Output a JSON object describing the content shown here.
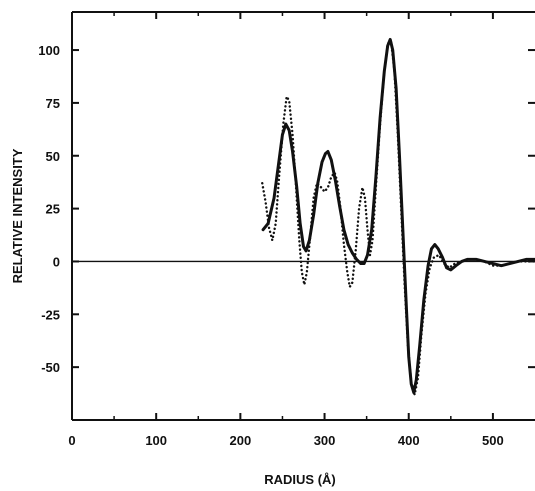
{
  "chart_data": {
    "type": "line",
    "title": "",
    "xlabel": "RADIUS (Å)",
    "ylabel": "RELATIVE INTENSITY",
    "xlim": [
      0,
      550
    ],
    "ylim": [
      -75,
      118
    ],
    "xticks": [
      0,
      100,
      200,
      300,
      400,
      500
    ],
    "yticks": [
      -50,
      -25,
      0,
      25,
      50,
      75,
      100
    ],
    "zero_line": true,
    "grid": false,
    "legend": "none",
    "series": [
      {
        "style": "solid",
        "color": "#111111",
        "points": [
          [
            227,
            15
          ],
          [
            233,
            18
          ],
          [
            240,
            30
          ],
          [
            245,
            45
          ],
          [
            250,
            60
          ],
          [
            254,
            65
          ],
          [
            258,
            62
          ],
          [
            262,
            52
          ],
          [
            267,
            35
          ],
          [
            271,
            18
          ],
          [
            275,
            7
          ],
          [
            278,
            5
          ],
          [
            282,
            10
          ],
          [
            287,
            22
          ],
          [
            292,
            37
          ],
          [
            297,
            47
          ],
          [
            301,
            51
          ],
          [
            304,
            52
          ],
          [
            308,
            48
          ],
          [
            313,
            38
          ],
          [
            318,
            26
          ],
          [
            323,
            15
          ],
          [
            328,
            8
          ],
          [
            333,
            4
          ],
          [
            338,
            1
          ],
          [
            343,
            -1
          ],
          [
            347,
            -1
          ],
          [
            351,
            3
          ],
          [
            356,
            15
          ],
          [
            361,
            40
          ],
          [
            366,
            68
          ],
          [
            371,
            90
          ],
          [
            375,
            102
          ],
          [
            378,
            105
          ],
          [
            381,
            100
          ],
          [
            385,
            82
          ],
          [
            389,
            50
          ],
          [
            393,
            15
          ],
          [
            397,
            -20
          ],
          [
            400,
            -45
          ],
          [
            403,
            -58
          ],
          [
            406,
            -62
          ],
          [
            409,
            -56
          ],
          [
            413,
            -40
          ],
          [
            418,
            -18
          ],
          [
            423,
            -2
          ],
          [
            427,
            6
          ],
          [
            431,
            8
          ],
          [
            435,
            6
          ],
          [
            440,
            2
          ],
          [
            445,
            -3
          ],
          [
            450,
            -4
          ],
          [
            456,
            -2
          ],
          [
            463,
            0
          ],
          [
            470,
            1
          ],
          [
            480,
            1
          ],
          [
            490,
            0
          ],
          [
            500,
            -1
          ],
          [
            510,
            -2
          ],
          [
            520,
            -1
          ],
          [
            530,
            0
          ],
          [
            540,
            1
          ],
          [
            550,
            1
          ]
        ]
      },
      {
        "style": "dotted",
        "color": "#111111",
        "points": [
          [
            226,
            37
          ],
          [
            230,
            28
          ],
          [
            234,
            16
          ],
          [
            238,
            10
          ],
          [
            242,
            18
          ],
          [
            246,
            40
          ],
          [
            251,
            65
          ],
          [
            255,
            78
          ],
          [
            258,
            76
          ],
          [
            262,
            60
          ],
          [
            266,
            36
          ],
          [
            270,
            10
          ],
          [
            273,
            -5
          ],
          [
            276,
            -11
          ],
          [
            279,
            -5
          ],
          [
            283,
            12
          ],
          [
            287,
            30
          ],
          [
            291,
            37
          ],
          [
            296,
            35
          ],
          [
            300,
            33
          ],
          [
            304,
            35
          ],
          [
            308,
            40
          ],
          [
            312,
            42
          ],
          [
            315,
            38
          ],
          [
            319,
            25
          ],
          [
            323,
            8
          ],
          [
            327,
            -5
          ],
          [
            330,
            -12
          ],
          [
            333,
            -10
          ],
          [
            337,
            5
          ],
          [
            341,
            25
          ],
          [
            345,
            35
          ],
          [
            348,
            30
          ],
          [
            351,
            15
          ],
          [
            354,
            3
          ],
          [
            357,
            10
          ],
          [
            361,
            35
          ],
          [
            366,
            65
          ],
          [
            371,
            90
          ],
          [
            375,
            103
          ],
          [
            379,
            104
          ],
          [
            383,
            90
          ],
          [
            387,
            60
          ],
          [
            391,
            25
          ],
          [
            395,
            -10
          ],
          [
            399,
            -40
          ],
          [
            403,
            -57
          ],
          [
            407,
            -63
          ],
          [
            411,
            -55
          ],
          [
            415,
            -35
          ],
          [
            420,
            -15
          ],
          [
            425,
            -3
          ],
          [
            430,
            2
          ],
          [
            436,
            3
          ],
          [
            442,
            -1
          ],
          [
            448,
            -3
          ],
          [
            455,
            -1
          ],
          [
            462,
            0
          ],
          [
            470,
            1
          ],
          [
            480,
            1
          ],
          [
            490,
            0
          ],
          [
            500,
            -2
          ],
          [
            510,
            -2
          ],
          [
            520,
            -1
          ],
          [
            530,
            0
          ],
          [
            540,
            0
          ],
          [
            550,
            0
          ]
        ]
      }
    ]
  }
}
